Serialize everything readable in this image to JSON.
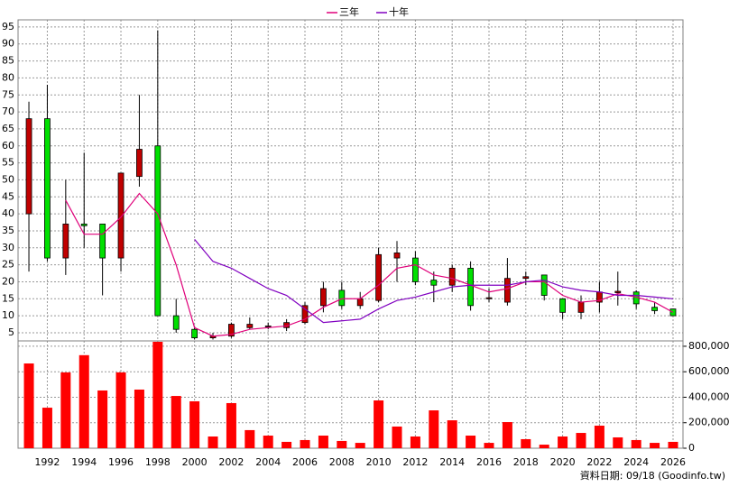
{
  "chart_data": [
    {
      "type": "candlestick",
      "x": [
        1991,
        1992,
        1993,
        1994,
        1995,
        1996,
        1997,
        1998,
        1999,
        2000,
        2001,
        2002,
        2003,
        2004,
        2005,
        2006,
        2007,
        2008,
        2009,
        2010,
        2011,
        2012,
        2013,
        2014,
        2015,
        2016,
        2017,
        2018,
        2019,
        2020,
        2021,
        2022,
        2023,
        2024,
        2025,
        2026
      ],
      "open": [
        40,
        68,
        27,
        37,
        37,
        27,
        51,
        60,
        10,
        6,
        3.5,
        4,
        6.5,
        6.8,
        6.5,
        8,
        13,
        17.5,
        13,
        14.5,
        27,
        27,
        20.5,
        19,
        24,
        15,
        14,
        21,
        22,
        15,
        11,
        14,
        16.8,
        17,
        12.5,
        12
      ],
      "high": [
        73,
        78,
        50,
        58,
        37,
        52,
        75,
        94,
        15,
        7,
        5,
        8,
        9.5,
        8,
        9,
        14,
        20,
        20,
        17,
        30,
        32,
        29,
        23,
        25,
        26,
        18,
        27,
        23,
        22,
        15,
        16,
        20,
        23,
        17.5,
        14,
        12
      ],
      "low": [
        23,
        26,
        22,
        30,
        16,
        23,
        48,
        10,
        5,
        3,
        3,
        3.5,
        6,
        6,
        5.5,
        7.5,
        11,
        12,
        12,
        14,
        20,
        19,
        14,
        17,
        11.5,
        14,
        13,
        19,
        14.5,
        9,
        9,
        11,
        13,
        12,
        10.5,
        10
      ],
      "close": [
        68,
        27,
        37,
        36.5,
        27,
        52,
        59,
        10,
        6,
        3.5,
        4,
        7.5,
        7.5,
        7,
        8,
        13,
        18,
        13,
        15,
        28,
        28.5,
        20,
        19,
        24,
        13,
        15.3,
        21,
        21.5,
        16,
        11,
        14,
        17,
        17.2,
        13.5,
        11.5,
        10
      ],
      "up_color": "#c00000",
      "down_color": "#00e000",
      "series": [
        {
          "name": "三年",
          "color": "#e0007a",
          "values": [
            null,
            null,
            44,
            34,
            34,
            39,
            46,
            40,
            25,
            6.5,
            4,
            4.5,
            6,
            6.5,
            7,
            9,
            12.5,
            15,
            15,
            19,
            24,
            25,
            22,
            21,
            19,
            17,
            18,
            20,
            20,
            16,
            14,
            14.5,
            16.5,
            15.5,
            14,
            11
          ]
        },
        {
          "name": "十年",
          "color": "#8000c0",
          "values": [
            null,
            null,
            null,
            null,
            null,
            null,
            null,
            null,
            null,
            32.5,
            26,
            24,
            21,
            18,
            16,
            12,
            8,
            8.5,
            9,
            12,
            14.5,
            15.5,
            17,
            18.5,
            19,
            19,
            19,
            20,
            20.5,
            18.5,
            17.5,
            17,
            16,
            16,
            15.5,
            15
          ]
        }
      ],
      "xlim": [
        1990.41,
        2026.54
      ],
      "ylim": [
        2.6,
        97.1
      ],
      "yticks": [
        5,
        10,
        15,
        20,
        25,
        30,
        35,
        40,
        45,
        50,
        55,
        60,
        65,
        70,
        75,
        80,
        85,
        90,
        95
      ],
      "grid": true,
      "legend": "top"
    },
    {
      "type": "bar",
      "x": [
        1991,
        1992,
        1993,
        1994,
        1995,
        1996,
        1997,
        1998,
        1999,
        2000,
        2001,
        2002,
        2003,
        2004,
        2005,
        2006,
        2007,
        2008,
        2009,
        2010,
        2011,
        2012,
        2013,
        2014,
        2015,
        2016,
        2017,
        2018,
        2019,
        2020,
        2021,
        2022,
        2023,
        2024,
        2025,
        2026
      ],
      "values": [
        665000,
        318000,
        595000,
        730000,
        453000,
        595000,
        460000,
        835000,
        410000,
        368000,
        92000,
        354000,
        142000,
        99000,
        50000,
        64000,
        99000,
        57000,
        42000,
        375000,
        170000,
        92000,
        297000,
        219000,
        99000,
        42000,
        205000,
        71000,
        28000,
        92000,
        120000,
        177000,
        85000,
        64000,
        42000,
        50000
      ],
      "color": "#ff0000",
      "xlim": [
        1990.41,
        2026.54
      ],
      "xticks": [
        1992,
        1994,
        1996,
        1998,
        2000,
        2002,
        2004,
        2006,
        2008,
        2010,
        2012,
        2014,
        2016,
        2018,
        2020,
        2022,
        2024,
        2026
      ],
      "ylim": [
        0,
        842000
      ],
      "yticks": [
        0,
        {
          "value": 200000,
          "label": "200,000"
        },
        {
          "value": 400000,
          "label": "400,000"
        },
        {
          "value": 600000,
          "label": "600,000"
        },
        {
          "value": 800000,
          "label": "800,000"
        }
      ],
      "grid": true
    }
  ],
  "source": "資料日期: 09/18 (Goodinfo.tw)"
}
